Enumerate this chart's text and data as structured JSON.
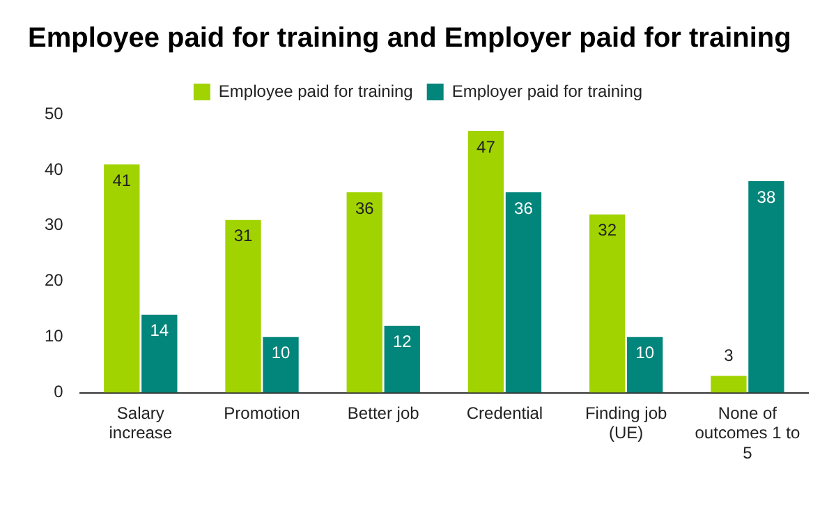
{
  "chart_data": {
    "type": "bar",
    "title": "Employee paid for training and Employer paid for training",
    "categories": [
      "Salary increase",
      "Promotion",
      "Better job",
      "Credential",
      "Finding job (UE)",
      "None of outcomes 1 to 5"
    ],
    "series": [
      {
        "name": "Employee paid for training",
        "color": "#a1d300",
        "values": [
          41,
          31,
          36,
          47,
          32,
          3
        ]
      },
      {
        "name": "Employer paid for training",
        "color": "#02857a",
        "values": [
          14,
          10,
          12,
          36,
          10,
          38
        ]
      }
    ],
    "ylim": [
      0,
      50
    ],
    "yticks": [
      0,
      10,
      20,
      30,
      40,
      50
    ],
    "grid": false,
    "legend": "top",
    "data_labels": true
  }
}
